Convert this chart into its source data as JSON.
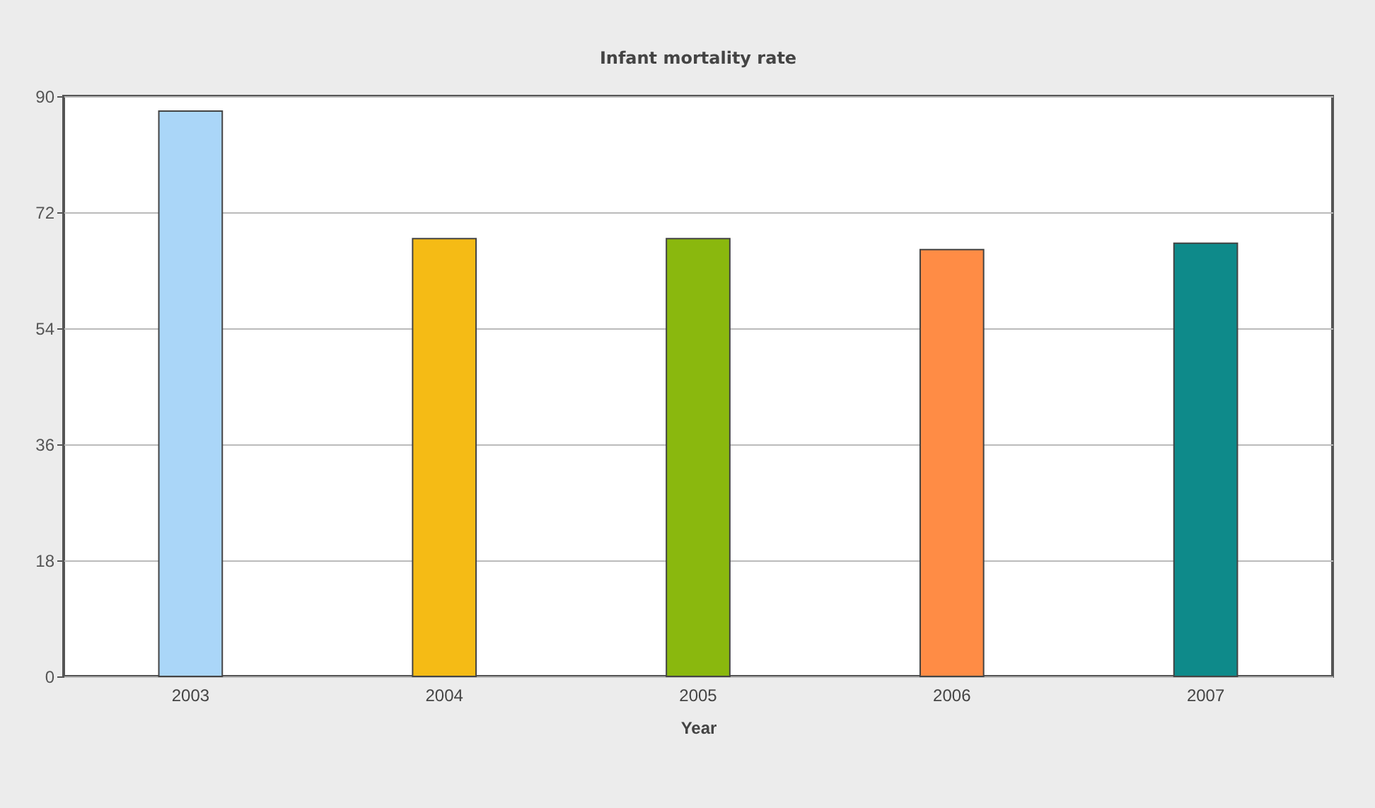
{
  "chart_data": {
    "type": "bar",
    "title": "Infant mortality rate",
    "xlabel": "Year",
    "categories": [
      "2003",
      "2004",
      "2005",
      "2006",
      "2007"
    ],
    "values": [
      87.7,
      67.9,
      67.9,
      66.2,
      67.2
    ],
    "colors": [
      "#aad6f8",
      "#f5bb15",
      "#8ab80e",
      "#ff8c45",
      "#0e8a8a"
    ],
    "ylim": [
      0,
      90
    ],
    "yticks": [
      0,
      18,
      36,
      54,
      72,
      90
    ],
    "grid": "y",
    "legend": false
  }
}
